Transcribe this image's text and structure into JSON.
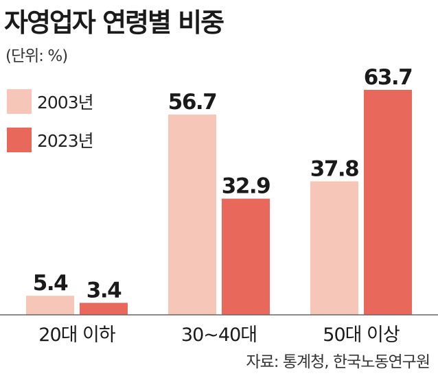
{
  "title": "자영업자 연령별 비중",
  "unit_note": "(단위: %)",
  "source": "자료: 통계청, 한국노동연구원",
  "colors": {
    "y2003": "#f6c6b9",
    "y2023": "#e8685c",
    "axis": "#666666",
    "text": "#1a1a1a"
  },
  "chart_data": {
    "type": "bar",
    "categories": [
      "20대 이하",
      "30~40대",
      "50대 이상"
    ],
    "series": [
      {
        "name": "2003년",
        "values": [
          5.4,
          56.7,
          37.8
        ]
      },
      {
        "name": "2023년",
        "values": [
          3.4,
          32.9,
          63.7
        ]
      }
    ],
    "value_labels": [
      [
        "5.4",
        "56.7",
        "37.8"
      ],
      [
        "3.4",
        "32.9",
        "63.7"
      ]
    ],
    "ylim": [
      0,
      63.7
    ],
    "grid": false,
    "legend_position": "top-left"
  }
}
